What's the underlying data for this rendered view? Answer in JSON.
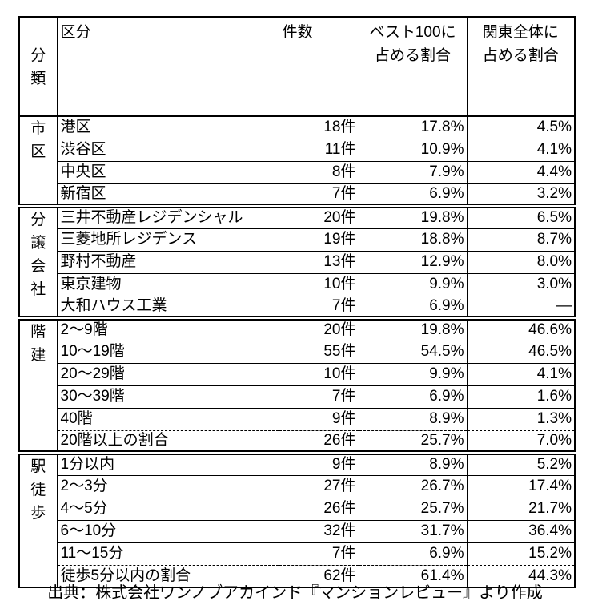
{
  "colors": {
    "text": "#000000",
    "background": "#ffffff",
    "border": "#000000"
  },
  "table": {
    "headers": {
      "category": "分類",
      "kubun": "区分",
      "kensu": "件数",
      "best100": "ベスト100に\n占める割合",
      "kanto": "関東全体に\n占める割合"
    },
    "sections": [
      {
        "label": "市区",
        "rows": [
          {
            "kubun": "港区",
            "kensu": "18件",
            "best100": "17.8%",
            "kanto": "4.5%"
          },
          {
            "kubun": "渋谷区",
            "kensu": "11件",
            "best100": "10.9%",
            "kanto": "4.1%"
          },
          {
            "kubun": "中央区",
            "kensu": "8件",
            "best100": "7.9%",
            "kanto": "4.4%"
          },
          {
            "kubun": "新宿区",
            "kensu": "7件",
            "best100": "6.9%",
            "kanto": "3.2%"
          }
        ]
      },
      {
        "label": "分譲会社",
        "rows": [
          {
            "kubun": "三井不動産レジデンシャル",
            "kensu": "20件",
            "best100": "19.8%",
            "kanto": "6.5%"
          },
          {
            "kubun": "三菱地所レジデンス",
            "kensu": "19件",
            "best100": "18.8%",
            "kanto": "8.7%"
          },
          {
            "kubun": "野村不動産",
            "kensu": "13件",
            "best100": "12.9%",
            "kanto": "8.0%"
          },
          {
            "kubun": "東京建物",
            "kensu": "10件",
            "best100": "9.9%",
            "kanto": "3.0%"
          },
          {
            "kubun": "大和ハウス工業",
            "kensu": "7件",
            "best100": "6.9%",
            "kanto": "—"
          }
        ]
      },
      {
        "label": "階建",
        "rows": [
          {
            "kubun": "2〜9階",
            "kensu": "20件",
            "best100": "19.8%",
            "kanto": "46.6%"
          },
          {
            "kubun": "10〜19階",
            "kensu": "55件",
            "best100": "54.5%",
            "kanto": "46.5%"
          },
          {
            "kubun": "20〜29階",
            "kensu": "10件",
            "best100": "9.9%",
            "kanto": "4.1%"
          },
          {
            "kubun": "30〜39階",
            "kensu": "7件",
            "best100": "6.9%",
            "kanto": "1.6%"
          },
          {
            "kubun": "40階",
            "kensu": "9件",
            "best100": "8.9%",
            "kanto": "1.3%"
          },
          {
            "kubun": "20階以上の割合",
            "kensu": "26件",
            "best100": "25.7%",
            "kanto": "7.0%",
            "summary": true
          }
        ]
      },
      {
        "label": "駅徒歩",
        "rows": [
          {
            "kubun": "1分以内",
            "kensu": "9件",
            "best100": "8.9%",
            "kanto": "5.2%"
          },
          {
            "kubun": "2〜3分",
            "kensu": "27件",
            "best100": "26.7%",
            "kanto": "17.4%"
          },
          {
            "kubun": "4〜5分",
            "kensu": "26件",
            "best100": "25.7%",
            "kanto": "21.7%"
          },
          {
            "kubun": "6〜10分",
            "kensu": "32件",
            "best100": "31.7%",
            "kanto": "36.4%"
          },
          {
            "kubun": "11〜15分",
            "kensu": "7件",
            "best100": "6.9%",
            "kanto": "15.2%"
          },
          {
            "kubun": "徒歩5分以内の割合",
            "kensu": "62件",
            "best100": "61.4%",
            "kanto": "44.3%",
            "summary": true
          }
        ]
      }
    ]
  },
  "footer": {
    "source": "出典：株式会社ワンノブアカインド『マンションレビュー』より作成"
  }
}
